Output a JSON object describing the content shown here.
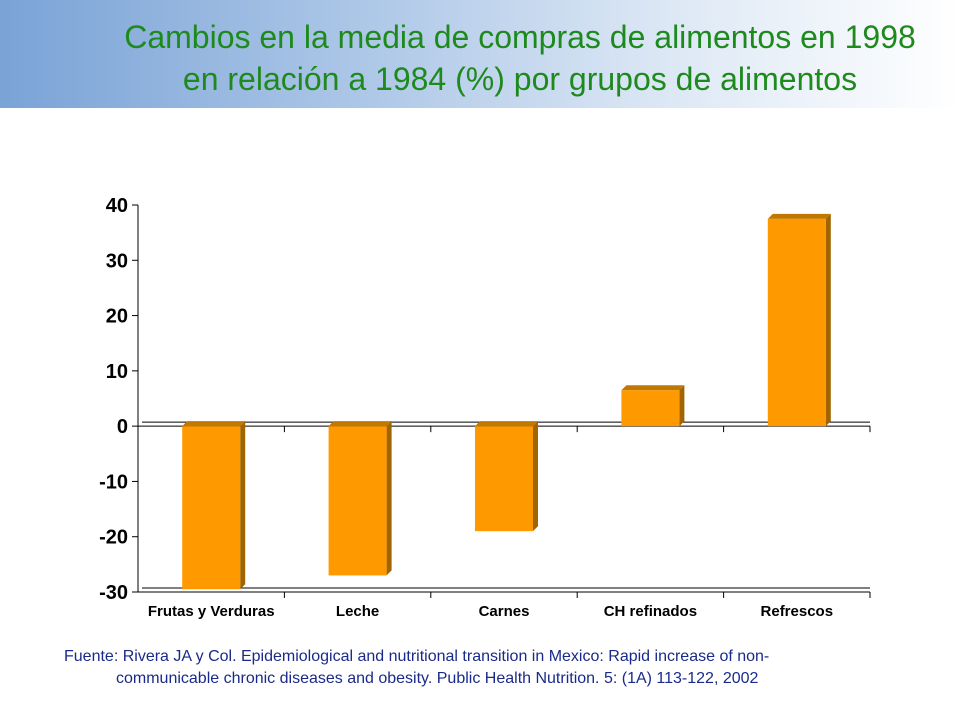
{
  "title": "Cambios en la media de compras de alimentos en 1998 en relación a 1984 (%) por grupos de alimentos",
  "source": {
    "line1": "Fuente: Rivera JA y Col. Epidemiological and nutritional transition in Mexico: Rapid increase of non-",
    "line2": "communicable chronic diseases and obesity. Public Health Nutrition.  5: (1A) 113-122, 2002"
  },
  "colors": {
    "title": "#1e8a1e",
    "bar_front": "#ff9900",
    "bar_side": "#a06400",
    "bar_top": "#c07800",
    "source_text": "#1a2a8a"
  },
  "chart_data": {
    "type": "bar",
    "categories": [
      "Frutas y Verduras",
      "Leche",
      "Carnes",
      "CH refinados",
      "Refrescos"
    ],
    "values": [
      -29.5,
      -27,
      -19,
      6.5,
      37.5
    ],
    "ylim": [
      -30,
      40
    ],
    "yticks": [
      "40",
      "30",
      "20",
      "10",
      "0",
      "-10",
      "-20",
      "-30"
    ],
    "ytick_values": [
      40,
      30,
      20,
      10,
      0,
      -10,
      -20,
      -30
    ],
    "grid": false,
    "legend": "none",
    "xlabel": "",
    "ylabel": ""
  }
}
